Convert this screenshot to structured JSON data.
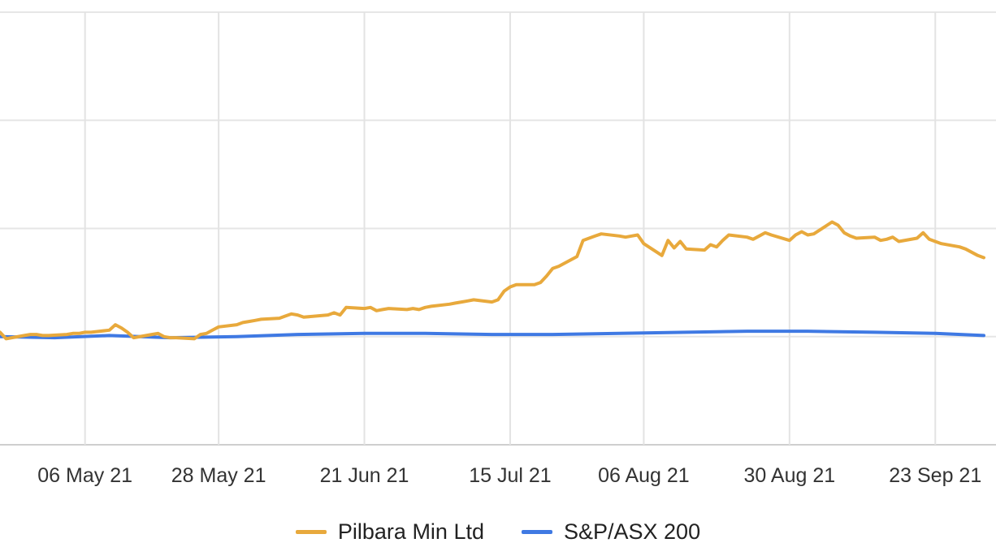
{
  "chart_data": {
    "type": "line",
    "title": "",
    "xlabel": "",
    "ylabel": "",
    "grid": true,
    "legend_position": "bottom",
    "x_ticks": [
      "06 May 21",
      "28 May 21",
      "21 Jun 21",
      "15 Jul 21",
      "06 Aug 21",
      "30 Aug 21",
      "23 Sep 21"
    ],
    "x_range": [
      "2021-04-22",
      "2021-10-03"
    ],
    "y_range": [
      -100,
      300
    ],
    "series": [
      {
        "name": "Pilbara Min Ltd",
        "color": "#E8A93C",
        "x": [
          "2021-04-22",
          "2021-04-23",
          "2021-04-26",
          "2021-04-27",
          "2021-04-28",
          "2021-04-29",
          "2021-04-30",
          "2021-05-03",
          "2021-05-04",
          "2021-05-05",
          "2021-05-06",
          "2021-05-07",
          "2021-05-10",
          "2021-05-11",
          "2021-05-12",
          "2021-05-13",
          "2021-05-14",
          "2021-05-17",
          "2021-05-18",
          "2021-05-19",
          "2021-05-20",
          "2021-05-21",
          "2021-05-24",
          "2021-05-25",
          "2021-05-26",
          "2021-05-27",
          "2021-05-28",
          "2021-05-31",
          "2021-06-01",
          "2021-06-02",
          "2021-06-03",
          "2021-06-04",
          "2021-06-07",
          "2021-06-08",
          "2021-06-09",
          "2021-06-10",
          "2021-06-11",
          "2021-06-15",
          "2021-06-16",
          "2021-06-17",
          "2021-06-18",
          "2021-06-21",
          "2021-06-22",
          "2021-06-23",
          "2021-06-24",
          "2021-06-25",
          "2021-06-28",
          "2021-06-29",
          "2021-06-30",
          "2021-07-01",
          "2021-07-02",
          "2021-07-05",
          "2021-07-06",
          "2021-07-07",
          "2021-07-08",
          "2021-07-09",
          "2021-07-12",
          "2021-07-13",
          "2021-07-14",
          "2021-07-15",
          "2021-07-16",
          "2021-07-19",
          "2021-07-20",
          "2021-07-21",
          "2021-07-22",
          "2021-07-23",
          "2021-07-26",
          "2021-07-27",
          "2021-07-28",
          "2021-07-29",
          "2021-07-30",
          "2021-08-02",
          "2021-08-03",
          "2021-08-04",
          "2021-08-05",
          "2021-08-06",
          "2021-08-09",
          "2021-08-10",
          "2021-08-11",
          "2021-08-12",
          "2021-08-13",
          "2021-08-16",
          "2021-08-17",
          "2021-08-18",
          "2021-08-19",
          "2021-08-20",
          "2021-08-23",
          "2021-08-24",
          "2021-08-25",
          "2021-08-26",
          "2021-08-27",
          "2021-08-30",
          "2021-08-31",
          "2021-09-01",
          "2021-09-02",
          "2021-09-03",
          "2021-09-06",
          "2021-09-07",
          "2021-09-08",
          "2021-09-09",
          "2021-09-10",
          "2021-09-13",
          "2021-09-14",
          "2021-09-15",
          "2021-09-16",
          "2021-09-17",
          "2021-09-20",
          "2021-09-21",
          "2021-09-22",
          "2021-09-23",
          "2021-09-24",
          "2021-09-27",
          "2021-09-28",
          "2021-09-29",
          "2021-09-30",
          "2021-10-01"
        ],
        "values": [
          4,
          -2,
          1,
          2,
          2,
          1,
          1,
          2,
          3,
          3,
          4,
          4,
          6,
          11,
          8,
          4,
          -1,
          2,
          3,
          0,
          -1,
          -1,
          -2,
          2,
          3,
          6,
          9,
          11,
          13,
          14,
          15,
          16,
          17,
          19,
          21,
          20,
          18,
          20,
          22,
          20,
          27,
          26,
          27,
          24,
          25,
          26,
          25,
          26,
          25,
          27,
          28,
          30,
          31,
          32,
          33,
          34,
          32,
          34,
          42,
          46,
          48,
          48,
          50,
          56,
          63,
          65,
          74,
          89,
          91,
          93,
          95,
          93,
          92,
          93,
          94,
          86,
          75,
          89,
          82,
          88,
          81,
          80,
          85,
          83,
          89,
          94,
          92,
          90,
          93,
          96,
          94,
          89,
          94,
          97,
          94,
          95,
          106,
          103,
          96,
          93,
          91,
          92,
          89,
          90,
          92,
          88,
          91,
          96,
          90,
          88,
          86,
          83,
          81,
          78,
          75,
          73
        ]
      },
      {
        "name": "S&P/ASX 200",
        "color": "#3F79E3",
        "x": [
          "2021-04-22",
          "2021-05-01",
          "2021-05-10",
          "2021-05-20",
          "2021-05-31",
          "2021-06-10",
          "2021-06-21",
          "2021-07-01",
          "2021-07-12",
          "2021-07-22",
          "2021-08-02",
          "2021-08-13",
          "2021-08-23",
          "2021-09-02",
          "2021-09-13",
          "2021-09-23",
          "2021-10-01"
        ],
        "values": [
          0,
          -1,
          1,
          -1,
          0,
          2,
          3,
          3,
          2,
          2,
          3,
          4,
          5,
          5,
          4,
          3,
          1
        ]
      }
    ]
  }
}
